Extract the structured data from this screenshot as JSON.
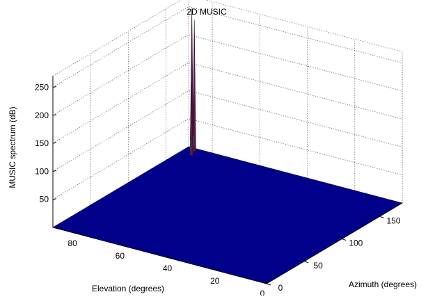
{
  "chart_data": {
    "type": "surface",
    "title": "2D MUSIC",
    "xlabel": "Elevation (degrees)",
    "ylabel": "Azimuth (degrees)",
    "zlabel": "MUSIC spectrum (dB)",
    "x_range": [
      0,
      90
    ],
    "y_range": [
      0,
      180
    ],
    "z_range": [
      0,
      270
    ],
    "x_ticks": [
      0,
      20,
      40,
      60,
      80
    ],
    "y_ticks": [
      0,
      50,
      100,
      150
    ],
    "z_ticks": [
      50,
      100,
      150,
      200,
      250
    ],
    "floor_level_db": 0,
    "surface_color": "#00008B",
    "peak_color": "#5a1a4a",
    "grid": true,
    "view": "3d-box",
    "peaks": [
      {
        "elevation": 88,
        "azimuth": 178,
        "value": 250
      },
      {
        "elevation": 86,
        "azimuth": 175,
        "value": 235
      },
      {
        "elevation": 85,
        "azimuth": 168,
        "value": 130
      }
    ]
  }
}
